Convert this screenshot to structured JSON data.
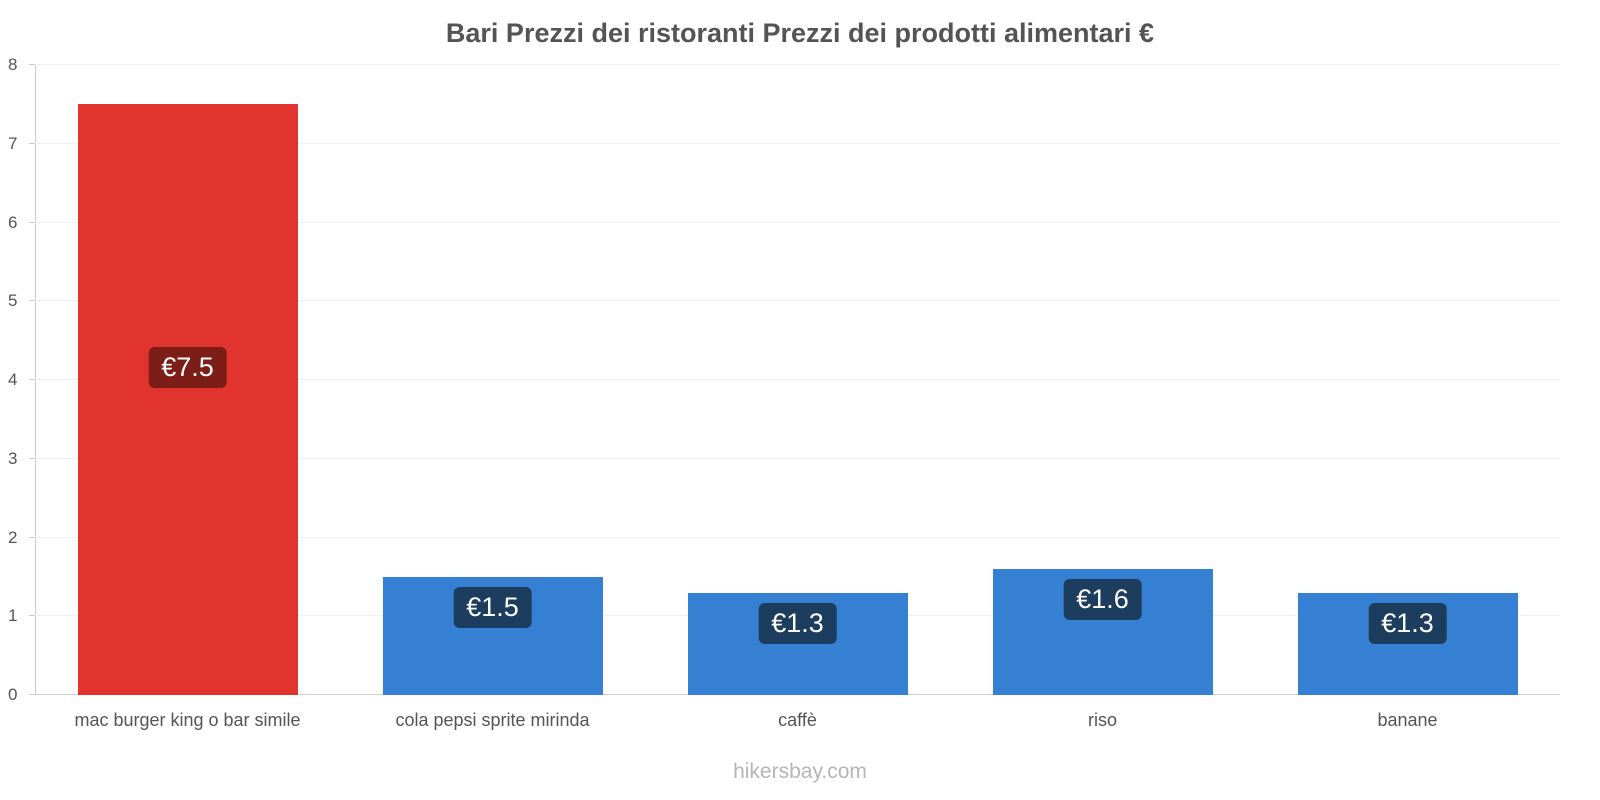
{
  "footer": {
    "site_label": "hikersbay.com"
  },
  "colors": {
    "grid": "#efefef",
    "axis": "#cccccc",
    "tick_text": "#555555",
    "title_text": "#545454",
    "footer_text": "#b5b5b5"
  },
  "chart_data": {
    "type": "bar",
    "title": "Bari Prezzi dei ristoranti Prezzi dei prodotti alimentari €",
    "categories": [
      "mac burger king o bar simile",
      "cola pepsi sprite mirinda",
      "caffè",
      "riso",
      "banane"
    ],
    "values": [
      7.5,
      1.5,
      1.3,
      1.6,
      1.3
    ],
    "value_labels": [
      "€7.5",
      "€1.5",
      "€1.3",
      "€1.6",
      "€1.3"
    ],
    "bar_colors": [
      "#e1342f",
      "#3580d3",
      "#3580d3",
      "#3580d3",
      "#3580d3"
    ],
    "badge_colors": [
      "#7c1d17",
      "#1d3d5e",
      "#1d3d5e",
      "#1d3d5e",
      "#1d3d5e"
    ],
    "badge_position": [
      "middle",
      "top",
      "top",
      "top",
      "top"
    ],
    "currency": "€",
    "xlabel": "",
    "ylabel": "",
    "ylim": [
      0,
      8
    ],
    "yticks": [
      0,
      1,
      2,
      3,
      4,
      5,
      6,
      7,
      8
    ],
    "grid": true,
    "legend": "none"
  }
}
